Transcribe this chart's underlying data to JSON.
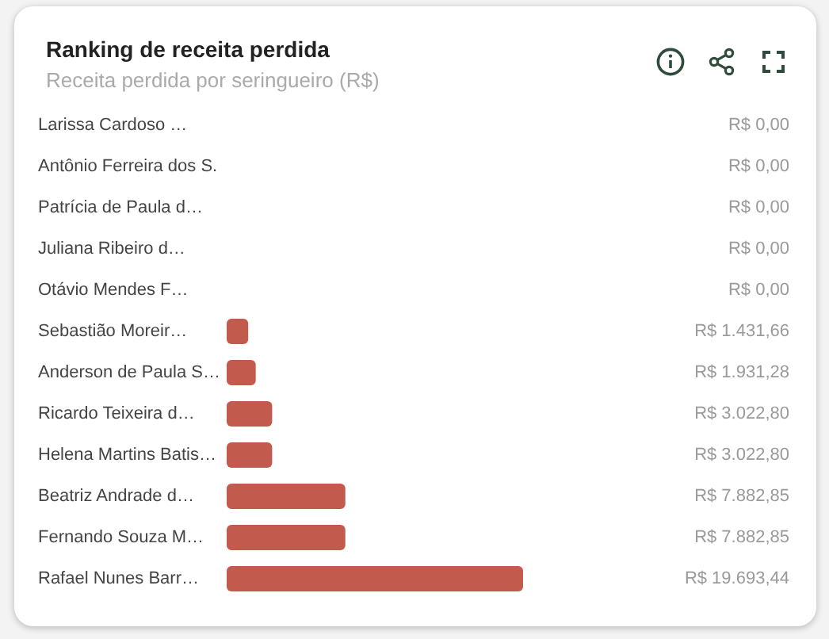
{
  "chart_data": {
    "type": "bar",
    "orientation": "horizontal",
    "title": "Ranking de receita perdida",
    "subtitle": "Receita perdida por seringueiro (R$)",
    "categories": [
      "Larissa Cardoso …",
      "Antônio Ferreira dos S.",
      "Patrícia de Paula d…",
      "Juliana Ribeiro d…",
      "Otávio Mendes F…",
      "Sebastião Moreir…",
      "Anderson de Paula S…",
      "Ricardo Teixeira d…",
      "Helena Martins Batis…",
      "Beatriz Andrade d…",
      "Fernando Souza M…",
      "Rafael Nunes Barr…"
    ],
    "values": [
      0,
      0,
      0,
      0,
      0,
      1431.66,
      1931.28,
      3022.8,
      3022.8,
      7882.85,
      7882.85,
      19693.44
    ],
    "value_labels": [
      "R$ 0,00",
      "R$ 0,00",
      "R$ 0,00",
      "R$ 0,00",
      "R$ 0,00",
      "R$ 1.431,66",
      "R$ 1.931,28",
      "R$ 3.022,80",
      "R$ 3.022,80",
      "R$ 7.882,85",
      "R$ 7.882,85",
      "R$ 19.693,44"
    ],
    "color": "#c25a4e"
  }
}
